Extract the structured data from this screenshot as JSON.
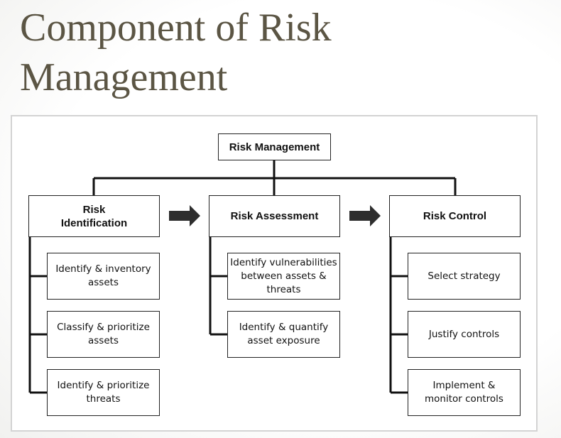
{
  "slide": {
    "title_line1": "Component of Risk",
    "title_line2": "Management"
  },
  "diagram": {
    "root": "Risk Management",
    "columns": [
      {
        "heading": "Risk\nIdentification",
        "items": [
          "Identify & inventory\nassets",
          "Classify & prioritize\nassets",
          "Identify & prioritize\nthreats"
        ]
      },
      {
        "heading": "Risk Assessment",
        "items": [
          "Identify vulnerabilities\nbetween assets &\nthreats",
          "Identify & quantify\nasset exposure"
        ]
      },
      {
        "heading": "Risk Control",
        "items": [
          "Select strategy",
          "Justify controls",
          "Implement &\nmonitor controls"
        ]
      }
    ],
    "arrow_color": "#2e2e2e",
    "line_color": "#111111"
  }
}
